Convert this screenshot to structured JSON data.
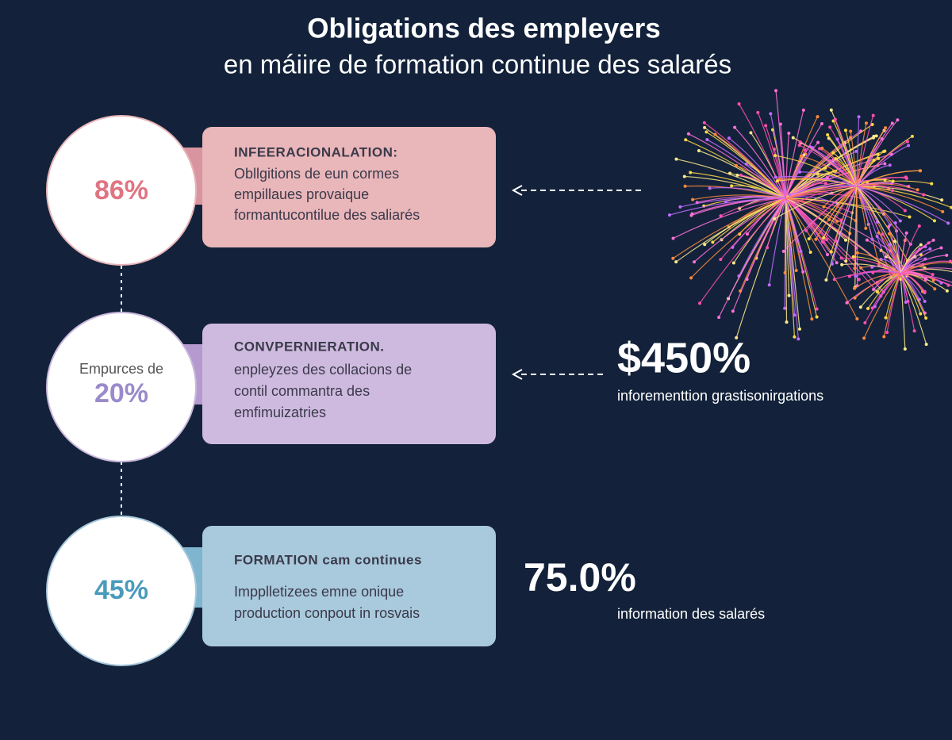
{
  "header": {
    "title": "Obligations des empleyers",
    "subtitle": "en máiire de formation continue des salarés"
  },
  "items": [
    {
      "circle": {
        "value": "86%"
      },
      "card": {
        "heading": "INFEERACIONALATION:",
        "lines": [
          "Obllgitions de eun cormes",
          "empillaues provaique",
          "formantucontilue des saliarés"
        ]
      }
    },
    {
      "circle": {
        "label": "Empurces de",
        "value": "20%"
      },
      "card": {
        "heading": "CONVPERNIERATION.",
        "lines": [
          "enpleyzes des collacions de",
          "contil commantra des",
          "emfimuizatries"
        ]
      }
    },
    {
      "circle": {
        "value": "45%"
      },
      "card": {
        "heading": "FORMATION cam continues",
        "lines": [
          "Impplletizees emne onique",
          "production conpout in rosvais"
        ]
      }
    }
  ],
  "stats": [
    {
      "value": "$450%",
      "label": "inforementtion grastisonirgations"
    },
    {
      "value": "75.0%",
      "label": "information des salarés"
    }
  ]
}
